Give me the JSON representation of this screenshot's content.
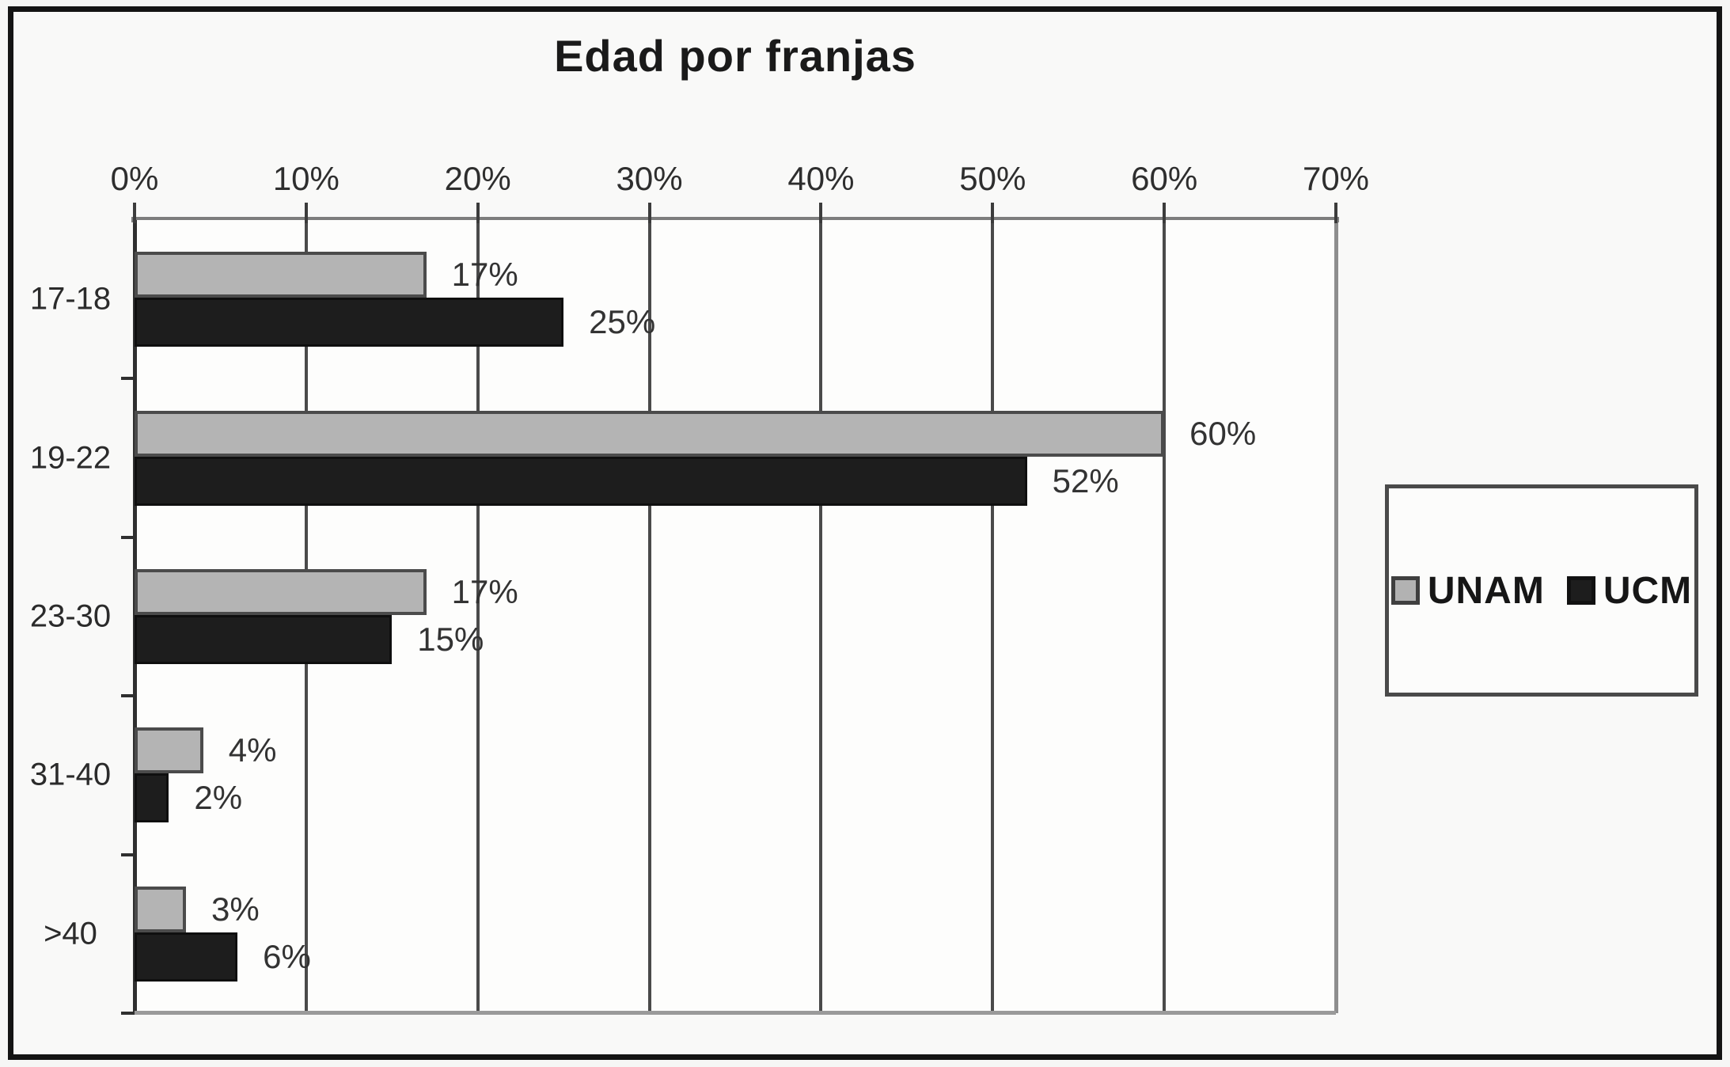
{
  "title": "Edad por franjas",
  "chart_data": {
    "type": "bar",
    "orientation": "horizontal",
    "title": "Edad por franjas",
    "categories": [
      "17-18",
      "19-22",
      "23-30",
      "31-40",
      ">40"
    ],
    "series": [
      {
        "name": "UNAM",
        "color": "#b4b4b4",
        "values": [
          17,
          60,
          17,
          4,
          3
        ]
      },
      {
        "name": "UCM",
        "color": "#1d1d1d",
        "values": [
          25,
          52,
          15,
          2,
          6
        ]
      }
    ],
    "value_labels": [
      [
        "17%",
        "60%",
        "17%",
        "4%",
        "3%"
      ],
      [
        "25%",
        "52%",
        "15%",
        "2%",
        "6%"
      ]
    ],
    "axis": {
      "position": "top",
      "min": 0,
      "max": 70,
      "step": 10,
      "tick_labels": [
        "0%",
        "10%",
        "20%",
        "30%",
        "40%",
        "50%",
        "60%",
        "70%"
      ]
    },
    "grid": true,
    "legend": {
      "position": "right",
      "entries": [
        "UNAM",
        "UCM"
      ]
    },
    "xlabel": "",
    "ylabel": ""
  },
  "colors": {
    "background": "#f6f6f5",
    "plot_background": "#fdfdfc",
    "frame_border": "#141414",
    "axis_line": "#7d7d7d",
    "gridline": "#4a4a4a",
    "series_unam": "#b4b4b4",
    "series_ucm": "#1d1d1d"
  }
}
